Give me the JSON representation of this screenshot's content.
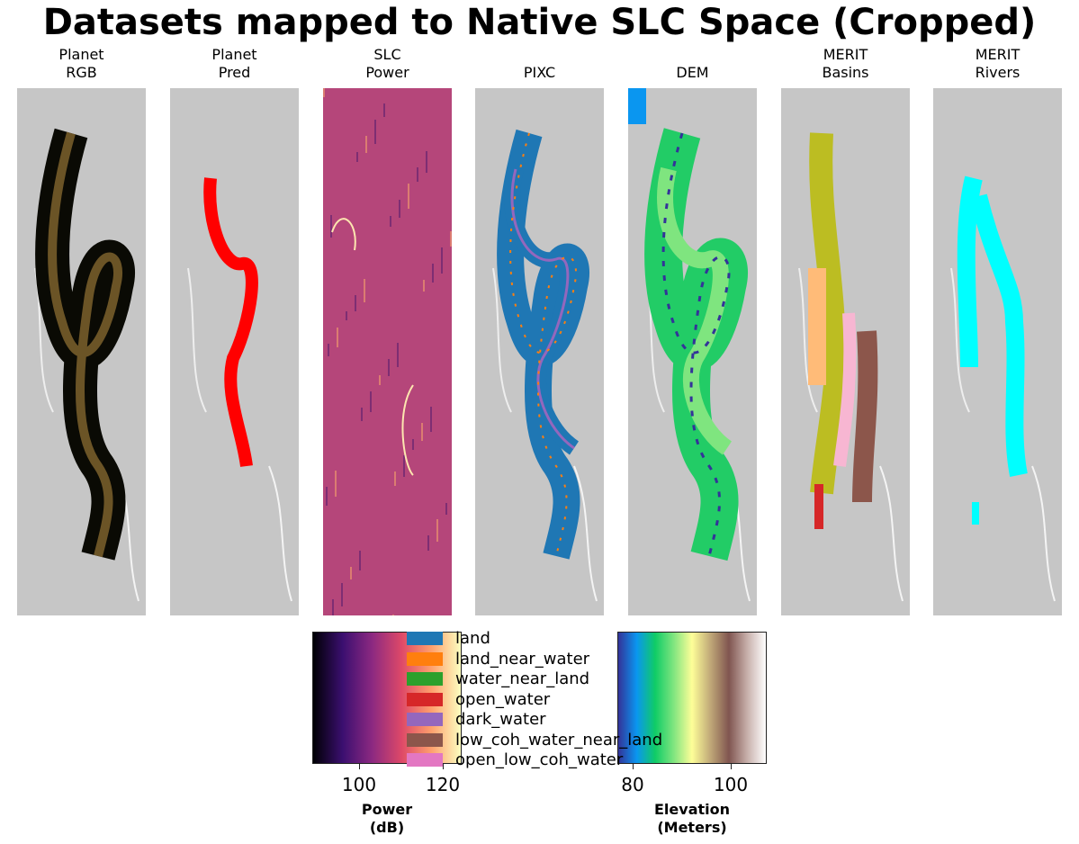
{
  "figure": {
    "title": "Datasets mapped to Native SLC Space (Cropped)"
  },
  "panels": [
    {
      "title_line1": "Planet",
      "title_line2": "RGB",
      "overlay": "rgb",
      "color": "#4a3a1a"
    },
    {
      "title_line1": "Planet",
      "title_line2": "Pred",
      "overlay": "pred",
      "color": "#ff0000"
    },
    {
      "title_line1": "SLC",
      "title_line2": "Power",
      "overlay": "power",
      "color": "#b5467a"
    },
    {
      "title_line1": "",
      "title_line2": "PIXC",
      "overlay": "pixc",
      "color": "#1f77b4"
    },
    {
      "title_line1": "",
      "title_line2": "DEM",
      "overlay": "dem",
      "color": "#22cc66"
    },
    {
      "title_line1": "MERIT",
      "title_line2": "Basins",
      "overlay": "basins",
      "color": "#bcbd22"
    },
    {
      "title_line1": "MERIT",
      "title_line2": "Rivers",
      "overlay": "rivers",
      "color": "#00ffff"
    }
  ],
  "power_colorbar": {
    "label_line1": "Power",
    "label_line2": "(dB)",
    "range": [
      88.8,
      124.5
    ],
    "ticks": [
      "100",
      "120"
    ],
    "tick_values": [
      100,
      120
    ],
    "colormap": "magma"
  },
  "elevation_colorbar": {
    "label_line1": "Elevation",
    "label_line2": "(Meters)",
    "range": [
      76.9,
      107.3
    ],
    "ticks": [
      "80",
      "100"
    ],
    "tick_values": [
      80,
      100
    ],
    "colormap": "terrain"
  },
  "legend": {
    "items": [
      {
        "label": "land",
        "color": "#1f77b4"
      },
      {
        "label": "land_near_water",
        "color": "#ff7f0e"
      },
      {
        "label": "water_near_land",
        "color": "#2ca02c"
      },
      {
        "label": "open_water",
        "color": "#d62728"
      },
      {
        "label": "dark_water",
        "color": "#9467bd"
      },
      {
        "label": "low_coh_water_near_land",
        "color": "#8c564b"
      },
      {
        "label": "open_low_coh_water",
        "color": "#e377c2"
      }
    ]
  }
}
